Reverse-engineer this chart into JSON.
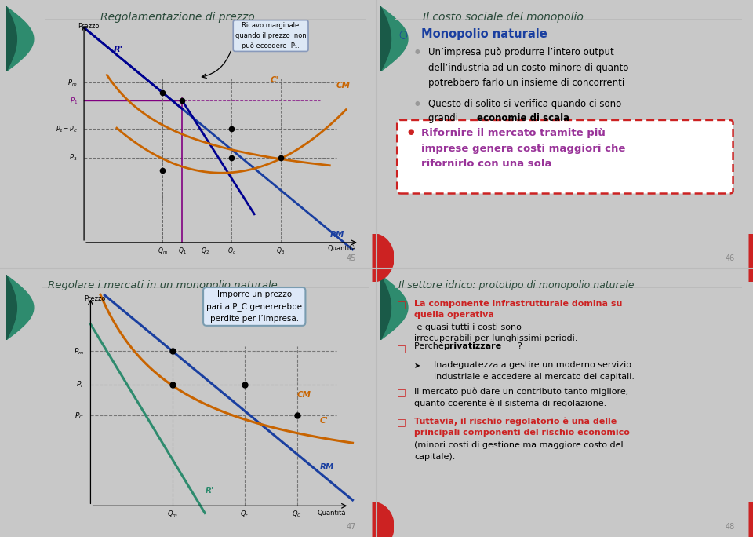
{
  "overall_bg": "#c8c8c8",
  "panel_bg": "#ffffff",
  "title_color": "#2a4a3a",
  "blue_curve": "#1a3fa0",
  "orange_curve": "#c86400",
  "green_curve": "#2e8b6e",
  "red_color": "#cc2222",
  "purple_text": "#993399",
  "teal_leaf1": "#2e8b6e",
  "teal_leaf2": "#1a5a48",
  "p1_title": "Regolamentazione di prezzo",
  "p1_box": "Ricavo marginale\nquando il prezzo  non\npuò eccedere  P₁.",
  "p1_num": "45",
  "p1_pm": 7.0,
  "p1_p1": 6.3,
  "p1_p2": 5.2,
  "p1_p3": 4.1,
  "p1_qm": 3.7,
  "p1_q1": 4.3,
  "p1_q2": 5.0,
  "p1_qc": 5.8,
  "p1_q3": 7.3,
  "p2_title": "Il costo sociale del monopolio",
  "p2_sub": "Monopolio naturale",
  "p2_b1": "Un’impresa può produrre l’intero output\ndell’industria ad un costo minore di quanto\npotrebbero farlo un insieme di concorrenti",
  "p2_b2": "Questo di solito si verifica quando ci sono\ngrandi ",
  "p2_b2b": "economie di scala",
  "p2_hl": "Rifornire il mercato tramite più\nimprese genera costi maggiori che\nrifornirlo con una sola",
  "p2_num": "46",
  "p3_title": "Regolare i mercati in un monopolio naturale",
  "p3_box": "Imporre un prezzo\npari a P_C genererebbe\nperdite per l’impresa.",
  "p3_num": "47",
  "p3_pm": 7.0,
  "p3_pr": 5.7,
  "p3_pc": 4.5,
  "p3_qm": 4.0,
  "p3_qr": 6.2,
  "p3_qc": 7.8,
  "p4_title": "Il settore idrico: prototipo di monopolio naturale",
  "p4_num": "48",
  "p4_t1a": "La componente infrastrutturale domina su\nquella operativa",
  "p4_t1b": " e quasi tutti i costi sono\nirrecuperabili per lunghissimi periodi.",
  "p4_t2": "Perché ",
  "p4_t2b": "privatizzare",
  "p4_t3": "Inadeguatezza a gestire un moderno servizio\nindustriale e accedere al mercato dei capitali.",
  "p4_t4": "Il mercato può dare un contributo tanto migliore,\nquanto coerente è il sistema di regolazione.",
  "p4_t5a": "Tuttavia, il rischio regolatorio è una delle\nprincipali componenti del rischio economico",
  "p4_t5b": "(minori costi di gestione ma maggiore costo del\ncapitale)."
}
